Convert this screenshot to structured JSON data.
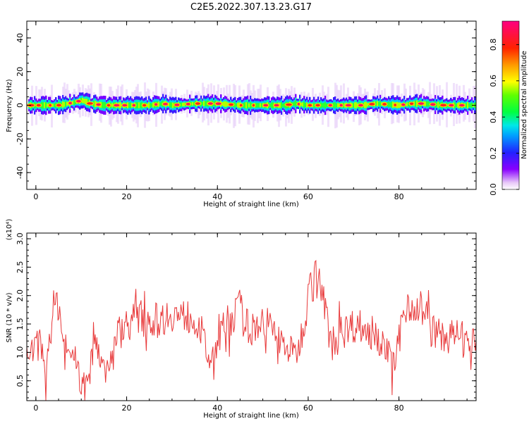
{
  "title": "C2E5.2022.307.13.23.G17",
  "chart_data": [
    {
      "type": "heatmap",
      "xlabel": "Height of straight line (km)",
      "ylabel": "Frequency (Hz)",
      "xlim": [
        -2,
        97
      ],
      "ylim": [
        -50,
        50
      ],
      "xticks": [
        "0",
        "20",
        "40",
        "60",
        "80"
      ],
      "yticks": [
        "40",
        "20",
        "0",
        "-20",
        "-40"
      ],
      "colorbar": {
        "label": "Normalized spectral amplitude",
        "ticks": [
          "0.0",
          "0.2",
          "0.4",
          "0.6",
          "0.8"
        ],
        "range": [
          0,
          0.93
        ]
      },
      "ridge": {
        "frequency": 0,
        "spread_hz": 5,
        "wiggle": [
          [
            0,
            0
          ],
          [
            5,
            0
          ],
          [
            9,
            2
          ],
          [
            10,
            3
          ],
          [
            12,
            1
          ],
          [
            15,
            0
          ],
          [
            20,
            0
          ],
          [
            25,
            0
          ],
          [
            28,
            1
          ],
          [
            30,
            0
          ],
          [
            35,
            1
          ],
          [
            40,
            1
          ],
          [
            45,
            0
          ],
          [
            50,
            0
          ],
          [
            55,
            0
          ],
          [
            57,
            1
          ],
          [
            60,
            0
          ],
          [
            70,
            0
          ],
          [
            72,
            0
          ],
          [
            75,
            1
          ],
          [
            80,
            0
          ],
          [
            83,
            1
          ],
          [
            85,
            1
          ],
          [
            90,
            0
          ],
          [
            95,
            0
          ]
        ]
      }
    },
    {
      "type": "line",
      "xlabel": "Height of straight line (km)",
      "ylabel": "SNR (10 * v/v)",
      "yscale_label": "(x10⁴)",
      "xlim": [
        -2,
        97
      ],
      "ylim": [
        0.15,
        3.1
      ],
      "xticks": [
        "0",
        "20",
        "40",
        "60",
        "80"
      ],
      "yticks": [
        "0.5",
        "1.0",
        "1.5",
        "2.0",
        "2.5",
        "3.0"
      ],
      "series": [
        {
          "color": "#e8393a",
          "baseline": [
            [
              -2,
              1.0
            ],
            [
              0,
              1.05
            ],
            [
              1,
              1.25
            ],
            [
              2,
              0.55
            ],
            [
              3,
              1.3
            ],
            [
              4,
              1.8
            ],
            [
              5,
              1.9
            ],
            [
              6,
              1.2
            ],
            [
              7,
              0.9
            ],
            [
              8,
              1.0
            ],
            [
              9,
              0.8
            ],
            [
              10,
              0.35
            ],
            [
              11,
              0.6
            ],
            [
              12,
              0.9
            ],
            [
              13,
              1.4
            ],
            [
              14,
              1.0
            ],
            [
              15,
              0.65
            ],
            [
              16,
              0.8
            ],
            [
              18,
              1.3
            ],
            [
              20,
              1.5
            ],
            [
              22,
              1.6
            ],
            [
              24,
              1.65
            ],
            [
              26,
              1.55
            ],
            [
              28,
              1.6
            ],
            [
              30,
              1.7
            ],
            [
              32,
              1.6
            ],
            [
              34,
              1.65
            ],
            [
              36,
              1.5
            ],
            [
              37,
              1.2
            ],
            [
              38,
              0.9
            ],
            [
              39,
              0.85
            ],
            [
              40,
              1.25
            ],
            [
              42,
              1.5
            ],
            [
              44,
              1.7
            ],
            [
              45,
              1.8
            ],
            [
              46,
              1.5
            ],
            [
              48,
              1.4
            ],
            [
              50,
              1.6
            ],
            [
              52,
              1.4
            ],
            [
              54,
              1.2
            ],
            [
              55,
              1.1
            ],
            [
              56,
              1.05
            ],
            [
              57,
              0.95
            ],
            [
              58,
              1.1
            ],
            [
              59,
              1.5
            ],
            [
              60,
              2.0
            ],
            [
              61,
              2.25
            ],
            [
              62,
              2.3
            ],
            [
              63,
              2.1
            ],
            [
              64,
              1.6
            ],
            [
              65,
              1.2
            ],
            [
              67,
              1.3
            ],
            [
              69,
              1.45
            ],
            [
              71,
              1.5
            ],
            [
              73,
              1.35
            ],
            [
              75,
              1.3
            ],
            [
              77,
              1.1
            ],
            [
              78,
              0.9
            ],
            [
              79,
              0.75
            ],
            [
              80,
              1.2
            ],
            [
              81,
              1.7
            ],
            [
              82,
              1.9
            ],
            [
              83,
              1.85
            ],
            [
              84,
              1.75
            ],
            [
              85,
              1.8
            ],
            [
              86,
              1.65
            ],
            [
              87,
              1.4
            ],
            [
              88,
              1.35
            ],
            [
              89,
              1.3
            ],
            [
              91,
              1.25
            ],
            [
              93,
              1.35
            ],
            [
              95,
              1.2
            ],
            [
              96,
              1.1
            ],
            [
              97,
              1.25
            ]
          ],
          "noise_amplitude": 0.28,
          "samples": 520
        }
      ]
    }
  ]
}
